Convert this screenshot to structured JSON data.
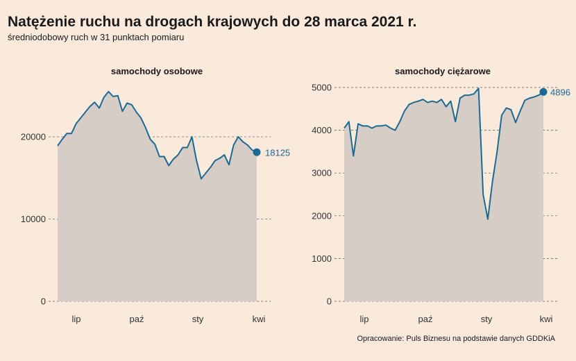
{
  "header": {
    "title": "Natężenie ruchu na drogach krajowych do 28 marca 2021 r.",
    "subtitle": "średniodobowy ruch w 31 punktach pomiaru"
  },
  "source": "Opracowanie: Puls Biznesu na podstawie danych GDDKiA",
  "colors": {
    "background": "#f9eadb",
    "line": "#1b6a94",
    "area": "#d6cdc7",
    "gridline": "#555555"
  },
  "chart_data": [
    {
      "type": "area",
      "title": "samochody osobowe",
      "xlabel": "",
      "ylabel": "",
      "x_tick_labels": [
        "lip",
        "paź",
        "sty",
        "kwi"
      ],
      "ylim": [
        0,
        26000
      ],
      "y_ticks": [
        0,
        10000,
        20000
      ],
      "grid": "horizontal dashed",
      "end_label": "18125",
      "values": [
        18900,
        19700,
        20400,
        20400,
        21600,
        22300,
        23000,
        23700,
        24200,
        23500,
        24800,
        25500,
        24900,
        25000,
        23100,
        24100,
        23900,
        23000,
        22300,
        21100,
        19700,
        19100,
        17600,
        17600,
        16500,
        17300,
        17800,
        18700,
        18700,
        20000,
        17100,
        14900,
        15600,
        16300,
        17100,
        17400,
        17800,
        16600,
        19000,
        20000,
        19400,
        19000,
        18400,
        18125
      ]
    },
    {
      "type": "area",
      "title": "samochody ciężarowe",
      "xlabel": "",
      "ylabel": "",
      "x_tick_labels": [
        "lip",
        "paź",
        "sty",
        "kwi"
      ],
      "ylim": [
        0,
        5000
      ],
      "y_ticks": [
        0,
        1000,
        2000,
        3000,
        4000,
        5000
      ],
      "grid": "horizontal dashed",
      "end_label": "4896",
      "values": [
        4050,
        4200,
        3400,
        4150,
        4100,
        4100,
        4050,
        4100,
        4100,
        4120,
        4050,
        4000,
        4200,
        4450,
        4600,
        4650,
        4680,
        4720,
        4650,
        4680,
        4650,
        4720,
        4550,
        4680,
        4200,
        4750,
        4820,
        4820,
        4850,
        4980,
        2500,
        1920,
        2800,
        3500,
        4350,
        4520,
        4480,
        4180,
        4450,
        4700,
        4750,
        4780,
        4820,
        4896
      ]
    }
  ]
}
